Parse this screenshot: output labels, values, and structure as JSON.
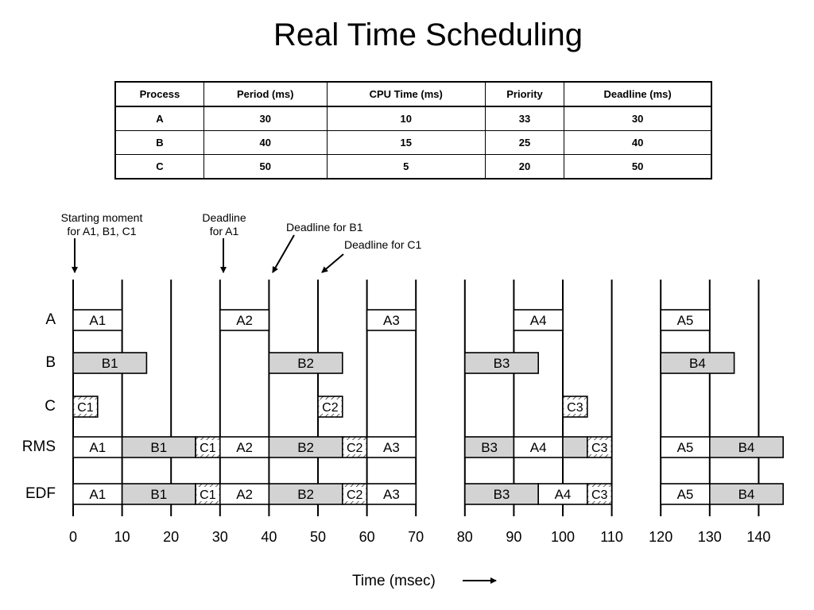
{
  "title": "Real Time Scheduling",
  "table": {
    "headers": [
      "Process",
      "Period (ms)",
      "CPU Time (ms)",
      "Priority",
      "Deadline (ms)"
    ],
    "rows": [
      [
        "A",
        "30",
        "10",
        "33",
        "30"
      ],
      [
        "B",
        "40",
        "15",
        "25",
        "40"
      ],
      [
        "C",
        "50",
        "5",
        "20",
        "50"
      ]
    ]
  },
  "annotations": [
    {
      "lines": [
        "Starting moment",
        "for A1, B1, C1"
      ],
      "time": 0
    },
    {
      "lines": [
        "Deadline",
        "for A1"
      ],
      "time": 30
    },
    {
      "lines": [
        "Deadline for B1"
      ],
      "time": 40
    },
    {
      "lines": [
        "Deadline for C1"
      ],
      "time": 50
    }
  ],
  "rows": [
    "A",
    "B",
    "C",
    "RMS",
    "EDF"
  ],
  "segments": [
    {
      "start": 0,
      "end": 70
    },
    {
      "start": 80,
      "end": 110
    },
    {
      "start": 120,
      "end": 145
    }
  ],
  "boundaries": [
    0,
    10,
    20,
    30,
    40,
    50,
    60,
    70,
    80,
    90,
    100,
    110,
    120,
    130,
    140
  ],
  "jobs": {
    "A": [
      {
        "label": "A1",
        "start": 0,
        "end": 10,
        "style": "white"
      },
      {
        "label": "A2",
        "start": 30,
        "end": 40,
        "style": "white"
      },
      {
        "label": "A3",
        "start": 60,
        "end": 70,
        "style": "white"
      },
      {
        "label": "A4",
        "start": 90,
        "end": 100,
        "style": "white"
      },
      {
        "label": "A5",
        "start": 120,
        "end": 130,
        "style": "white"
      }
    ],
    "B": [
      {
        "label": "B1",
        "start": 0,
        "end": 15,
        "style": "gray"
      },
      {
        "label": "B2",
        "start": 40,
        "end": 55,
        "style": "gray"
      },
      {
        "label": "B3",
        "start": 80,
        "end": 95,
        "style": "gray"
      },
      {
        "label": "B4",
        "start": 120,
        "end": 135,
        "style": "gray"
      }
    ],
    "C": [
      {
        "label": "C1",
        "start": 0,
        "end": 5,
        "style": "hatch"
      },
      {
        "label": "C2",
        "start": 50,
        "end": 55,
        "style": "hatch"
      },
      {
        "label": "C3",
        "start": 100,
        "end": 105,
        "style": "hatch"
      }
    ],
    "RMS": [
      {
        "label": "A1",
        "start": 0,
        "end": 10,
        "style": "white"
      },
      {
        "label": "B1",
        "start": 10,
        "end": 25,
        "style": "gray"
      },
      {
        "label": "C1",
        "start": 25,
        "end": 30,
        "style": "hatch"
      },
      {
        "label": "A2",
        "start": 30,
        "end": 40,
        "style": "white"
      },
      {
        "label": "B2",
        "start": 40,
        "end": 55,
        "style": "gray"
      },
      {
        "label": "C2",
        "start": 55,
        "end": 60,
        "style": "hatch"
      },
      {
        "label": "A3",
        "start": 60,
        "end": 70,
        "style": "white"
      },
      {
        "label": "B3",
        "start": 80,
        "end": 90,
        "style": "gray"
      },
      {
        "label": "A4",
        "start": 90,
        "end": 100,
        "style": "white"
      },
      {
        "label": "",
        "start": 100,
        "end": 105,
        "style": "gray"
      },
      {
        "label": "C3",
        "start": 105,
        "end": 110,
        "style": "hatch"
      },
      {
        "label": "A5",
        "start": 120,
        "end": 130,
        "style": "white"
      },
      {
        "label": "B4",
        "start": 130,
        "end": 145,
        "style": "gray"
      }
    ],
    "EDF": [
      {
        "label": "A1",
        "start": 0,
        "end": 10,
        "style": "white"
      },
      {
        "label": "B1",
        "start": 10,
        "end": 25,
        "style": "gray"
      },
      {
        "label": "C1",
        "start": 25,
        "end": 30,
        "style": "hatch"
      },
      {
        "label": "A2",
        "start": 30,
        "end": 40,
        "style": "white"
      },
      {
        "label": "B2",
        "start": 40,
        "end": 55,
        "style": "gray"
      },
      {
        "label": "C2",
        "start": 55,
        "end": 60,
        "style": "hatch"
      },
      {
        "label": "A3",
        "start": 60,
        "end": 70,
        "style": "white"
      },
      {
        "label": "B3",
        "start": 80,
        "end": 95,
        "style": "gray"
      },
      {
        "label": "A4",
        "start": 95,
        "end": 105,
        "style": "white"
      },
      {
        "label": "C3",
        "start": 105,
        "end": 110,
        "style": "hatch"
      },
      {
        "label": "A5",
        "start": 120,
        "end": 130,
        "style": "white"
      },
      {
        "label": "B4",
        "start": 130,
        "end": 145,
        "style": "gray"
      }
    ]
  },
  "axis": {
    "ticks": [
      0,
      10,
      20,
      30,
      40,
      50,
      60,
      70,
      80,
      90,
      100,
      110,
      120,
      130,
      140
    ],
    "label": "Time (msec)"
  },
  "colors": {
    "gray": "#d3d3d3",
    "white": "#ffffff",
    "line": "#000000"
  }
}
